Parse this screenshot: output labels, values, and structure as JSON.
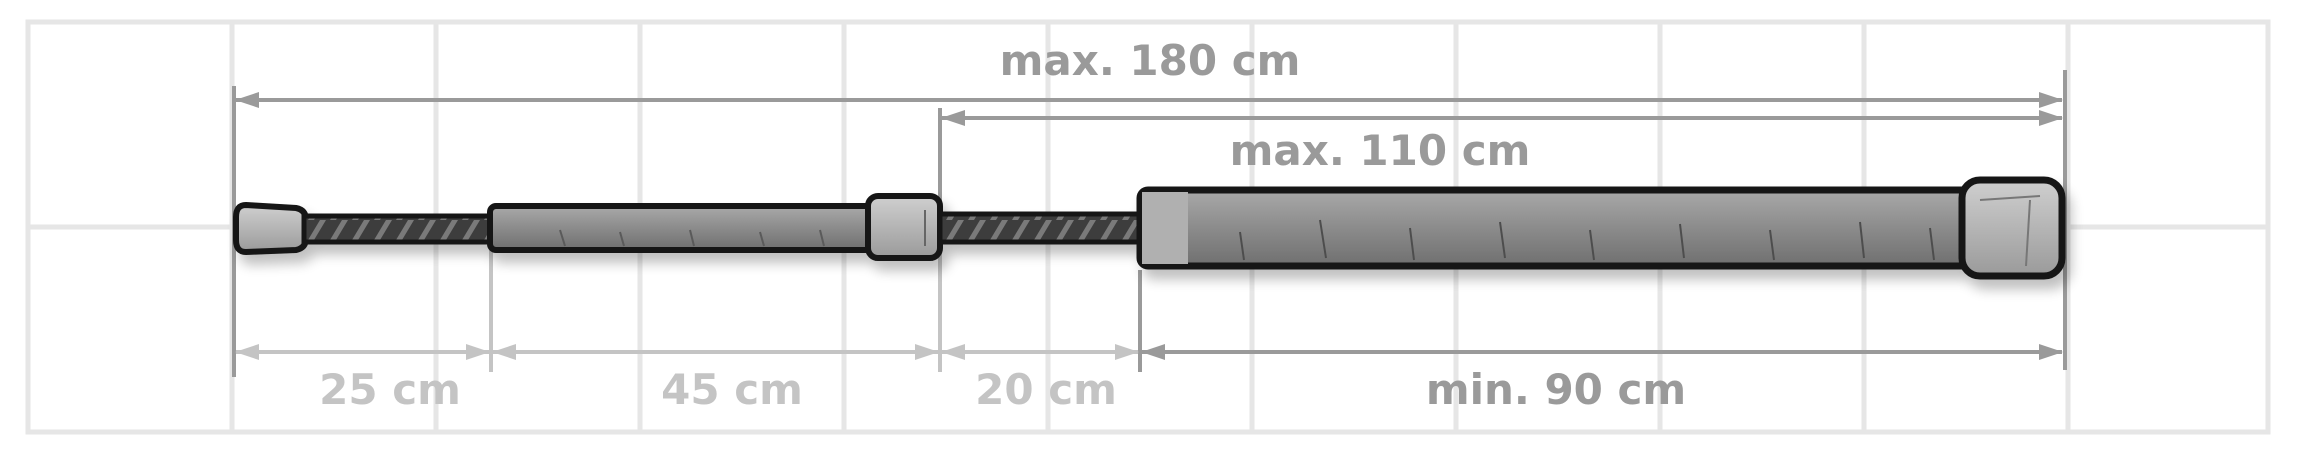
{
  "dimensions": {
    "total_max": "max. 180 cm",
    "extension_max": "max. 110 cm",
    "segment_1": "25 cm",
    "segment_2": "45 cm",
    "segment_3": "20 cm",
    "body_min": "min. 90 cm"
  },
  "colors": {
    "background": "#ffffff",
    "grid": "#e6e6e6",
    "dimension_dark": "#9a9a9a",
    "dimension_light": "#c4c4c4",
    "outline": "#151515",
    "tube_fill": "#8c8c8c",
    "cap_fill": "#b5b5b5"
  }
}
